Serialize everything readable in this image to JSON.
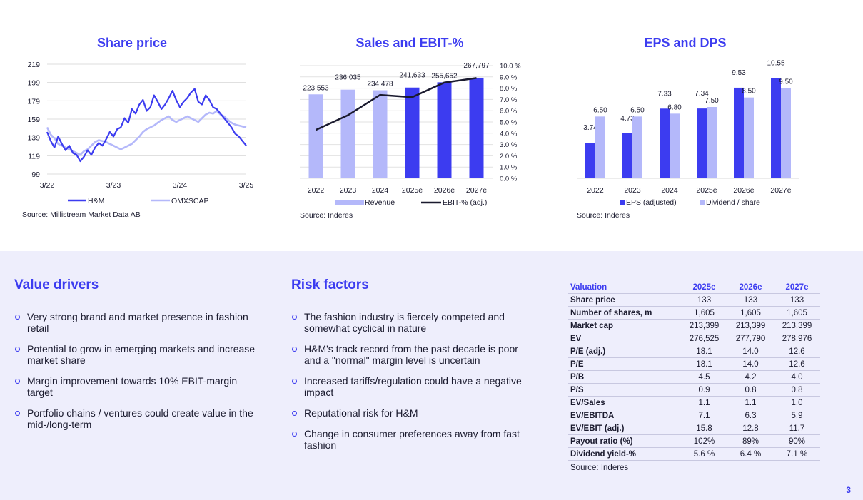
{
  "colors": {
    "accent": "#3c3cf0",
    "light": "#b4b8fa",
    "background_bottom": "#eeeefc",
    "line": "#1a1a2e"
  },
  "share_price": {
    "title": "Share price",
    "source": "Source: Millistream Market Data AB",
    "legend": [
      "H&M",
      "OMXSCAP"
    ]
  },
  "sales_ebit": {
    "title": "Sales and EBIT-%",
    "source": "Source: Inderes",
    "legend": [
      "Revenue",
      "EBIT-% (adj.)"
    ]
  },
  "eps_dps": {
    "title": "EPS and DPS",
    "source": "Source: Inderes",
    "legend": [
      "EPS (adjusted)",
      "Dividend / share"
    ]
  },
  "chart_data": [
    {
      "type": "line",
      "title": "Share price",
      "x_ticks": [
        "3/22",
        "3/23",
        "3/24",
        "3/25"
      ],
      "y_ticks": [
        99,
        119,
        139,
        159,
        179,
        199,
        219
      ],
      "ylim": [
        99,
        219
      ],
      "grid": true,
      "legend_placement": "bottom",
      "series": [
        {
          "name": "H&M",
          "values": [
            145,
            135,
            128,
            140,
            132,
            125,
            130,
            122,
            120,
            113,
            118,
            125,
            120,
            128,
            133,
            130,
            137,
            145,
            140,
            148,
            150,
            160,
            155,
            170,
            165,
            175,
            180,
            168,
            172,
            185,
            178,
            170,
            175,
            182,
            190,
            180,
            172,
            178,
            182,
            188,
            192,
            178,
            175,
            185,
            180,
            172,
            170,
            165,
            160,
            155,
            150,
            143,
            140,
            135,
            130
          ]
        },
        {
          "name": "OMXSCAP",
          "values": [
            150,
            142,
            138,
            132,
            130,
            128,
            126,
            124,
            122,
            120,
            124,
            126,
            130,
            134,
            136,
            135,
            134,
            132,
            130,
            128,
            126,
            128,
            130,
            132,
            136,
            140,
            145,
            148,
            150,
            152,
            155,
            158,
            160,
            162,
            158,
            156,
            158,
            160,
            162,
            160,
            158,
            156,
            160,
            164,
            166,
            165,
            168,
            164,
            162,
            158,
            155,
            153,
            152,
            151,
            150
          ]
        }
      ]
    },
    {
      "type": "bar",
      "title": "Sales and EBIT-%",
      "categories": [
        "2022",
        "2023",
        "2024",
        "2025e",
        "2026e",
        "2027e"
      ],
      "series": [
        {
          "name": "Revenue",
          "values": [
            223553,
            236035,
            234478,
            241633,
            255652,
            267797
          ]
        },
        {
          "name": "EBIT-% (adj.)",
          "values": [
            4.3,
            5.6,
            7.4,
            7.2,
            8.5,
            8.9
          ]
        }
      ],
      "value_labels": [
        "223,553",
        "236,035",
        "234,478",
        "241,633",
        "255,652",
        "267,797"
      ],
      "y2_ticks": [
        "10.0 %",
        "9.0 %",
        "8.0 %",
        "7.0 %",
        "6.0 %",
        "5.0 %",
        "4.0 %",
        "3.0 %",
        "2.0 %",
        "1.0 %",
        "0.0 %"
      ],
      "ylim": [
        0,
        300000
      ],
      "y2lim": [
        0,
        10
      ],
      "grid": true,
      "legend_placement": "bottom"
    },
    {
      "type": "bar",
      "title": "EPS and DPS",
      "categories": [
        "2022",
        "2023",
        "2024",
        "2025e",
        "2026e",
        "2027e"
      ],
      "series": [
        {
          "name": "EPS (adjusted)",
          "values": [
            3.74,
            4.73,
            7.33,
            7.34,
            9.53,
            10.55
          ],
          "labels": [
            "3.74",
            "4.73",
            "7.33",
            "7.34",
            "9.53",
            "10.55"
          ]
        },
        {
          "name": "Dividend / share",
          "values": [
            6.5,
            6.5,
            6.8,
            7.5,
            8.5,
            9.5
          ],
          "labels": [
            "6.50",
            "6.50",
            "6.80",
            "7.50",
            "8.50",
            "9.50"
          ]
        }
      ],
      "ylim": [
        0,
        12
      ],
      "grid": true,
      "legend_placement": "bottom"
    }
  ],
  "value_drivers": {
    "title": "Value drivers",
    "items": [
      "Very strong brand and market presence in fashion retail",
      "Potential to grow in emerging markets and increase market share",
      "Margin improvement towards 10% EBIT-margin target",
      "Portfolio chains / ventures could create value in the mid-/long-term"
    ]
  },
  "risk_factors": {
    "title": "Risk factors",
    "items": [
      "The fashion industry is fiercely competed and somewhat cyclical in nature",
      "H&M's track record from the past decade is poor and a \"normal\" margin level is uncertain",
      "Increased tariffs/regulation could have a negative impact",
      "Reputational risk for H&M",
      "Change in consumer preferences away from fast fashion"
    ]
  },
  "valuation": {
    "header": [
      "Valuation",
      "2025e",
      "2026e",
      "2027e"
    ],
    "rows": [
      [
        "Share price",
        "133",
        "133",
        "133"
      ],
      [
        "Number of shares, m",
        "1,605",
        "1,605",
        "1,605"
      ],
      [
        "Market cap",
        "213,399",
        "213,399",
        "213,399"
      ],
      [
        "EV",
        "276,525",
        "277,790",
        "278,976"
      ],
      [
        "P/E (adj.)",
        "18.1",
        "14.0",
        "12.6"
      ],
      [
        "P/E",
        "18.1",
        "14.0",
        "12.6"
      ],
      [
        "P/B",
        "4.5",
        "4.2",
        "4.0"
      ],
      [
        "P/S",
        "0.9",
        "0.8",
        "0.8"
      ],
      [
        "EV/Sales",
        "1.1",
        "1.1",
        "1.0"
      ],
      [
        "EV/EBITDA",
        "7.1",
        "6.3",
        "5.9"
      ],
      [
        "EV/EBIT (adj.)",
        "15.8",
        "12.8",
        "11.7"
      ],
      [
        "Payout ratio (%)",
        "102%",
        "89%",
        "90%"
      ],
      [
        "Dividend yield-%",
        "5.6 %",
        "6.4 %",
        "7.1 %"
      ]
    ],
    "source": "Source: Inderes"
  },
  "page_number": "3"
}
